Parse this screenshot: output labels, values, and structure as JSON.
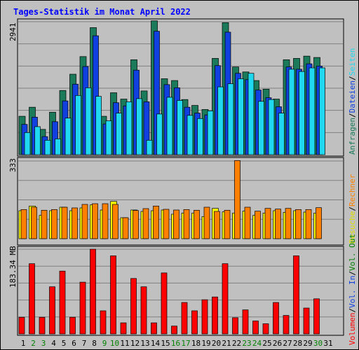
{
  "title": "Tages-Statistik im Monat April 2022",
  "colors": {
    "anfragen": "#1a7a5a",
    "dateien": "#1040e0",
    "seiten": "#20d8f0",
    "besuche": "#ffff00",
    "rechner": "#ff8000",
    "volumen": "#ff0000",
    "weekday_label": "#000000",
    "weekend_label": "#008000",
    "grid": "#808080",
    "panel_bg": "#c0c0c0"
  },
  "legends": {
    "top": [
      {
        "text": "Anfragen",
        "color": "#1a7a5a"
      },
      {
        "text": "/",
        "color": "#000000"
      },
      {
        "text": "Dateien",
        "color": "#1040e0"
      },
      {
        "text": "/",
        "color": "#000000"
      },
      {
        "text": "Seiten",
        "color": "#20d8f0"
      }
    ],
    "middle": [
      {
        "text": "Besuche",
        "color": "#e0e000"
      },
      {
        "text": "/",
        "color": "#000000"
      },
      {
        "text": "Rechner",
        "color": "#ff8000"
      }
    ],
    "bottom": [
      {
        "text": "Volumen",
        "color": "#ff0000"
      },
      {
        "text": "/",
        "color": "#000000"
      },
      {
        "text": "Vol. In",
        "color": "#1040e0"
      },
      {
        "text": "/",
        "color": "#000000"
      },
      {
        "text": "Vol. Out",
        "color": "#008000"
      }
    ]
  },
  "chart_data": {
    "type": "bar",
    "days": [
      "1",
      "2",
      "3",
      "4",
      "5",
      "6",
      "7",
      "8",
      "9",
      "10",
      "11",
      "12",
      "13",
      "14",
      "15",
      "16",
      "17",
      "18",
      "19",
      "20",
      "21",
      "22",
      "23",
      "24",
      "25",
      "26",
      "27",
      "28",
      "29",
      "30",
      "31"
    ],
    "weekend_days": [
      "2",
      "3",
      "9",
      "10",
      "16",
      "17",
      "23",
      "24",
      "30"
    ],
    "panels": [
      {
        "name": "top",
        "max_label": "2941",
        "ymax": 2941,
        "series": [
          {
            "name": "Anfragen",
            "values": [
              850,
              1050,
              560,
              940,
              1420,
              1780,
              2170,
              2810,
              850,
              1370,
              1230,
              2100,
              1410,
              2960,
              1680,
              1640,
              1220,
              1090,
              1000,
              2130,
              2920,
              1940,
              1830,
              1640,
              1450,
              1230,
              2100,
              2130,
              2180,
              2150,
              null
            ]
          },
          {
            "name": "Dateien",
            "values": [
              670,
              830,
              400,
              730,
              1190,
              1560,
              1950,
              2630,
              680,
              1150,
              1080,
              1870,
              1170,
              2730,
              1550,
              1480,
              1050,
              920,
              880,
              1970,
              2710,
              1800,
              1660,
              1430,
              1260,
              1060,
              1940,
              1890,
              2010,
              1960,
              null
            ]
          },
          {
            "name": "Seiten",
            "values": [
              490,
              620,
              320,
              350,
              810,
              1310,
              1480,
              1290,
              750,
              920,
              1170,
              1240,
              320,
              900,
              1270,
              1200,
              870,
              800,
              970,
              1500,
              1570,
              1680,
              1800,
              1180,
              1220,
              920,
              1890,
              1840,
              1920,
              1920,
              null
            ]
          }
        ]
      },
      {
        "name": "middle",
        "max_label": "333",
        "ymax": 333,
        "series": [
          {
            "name": "Besuche",
            "values": [
              120,
              140,
              100,
              120,
              135,
              120,
              132,
              145,
              123,
              160,
              90,
              123,
              117,
              120,
              123,
              105,
              110,
              110,
              95,
              130,
              115,
              110,
              118,
              100,
              110,
              120,
              113,
              120,
              114,
              110,
              null
            ]
          },
          {
            "name": "Rechner",
            "values": [
              125,
              135,
              122,
              125,
              135,
              132,
              147,
              150,
              150,
              147,
              90,
              121,
              129,
              140,
              126,
              123,
              125,
              122,
              135,
              117,
              122,
              335,
              135,
              118,
              130,
              127,
              130,
              125,
              125,
              133,
              null
            ]
          }
        ]
      },
      {
        "name": "bottom",
        "max_label": "183.34 MB",
        "ymax": 183.34,
        "series": [
          {
            "name": "Volumen",
            "values": [
              36,
              152,
              36,
              102,
              136,
              36,
              112,
              183.34,
              50,
              169,
              24,
              120,
              102,
              24,
              132,
              17,
              68,
              50,
              74,
              80,
              152,
              35,
              52,
              28,
              22,
              68,
              40,
              169,
              56,
              76,
              null
            ]
          }
        ]
      }
    ]
  }
}
